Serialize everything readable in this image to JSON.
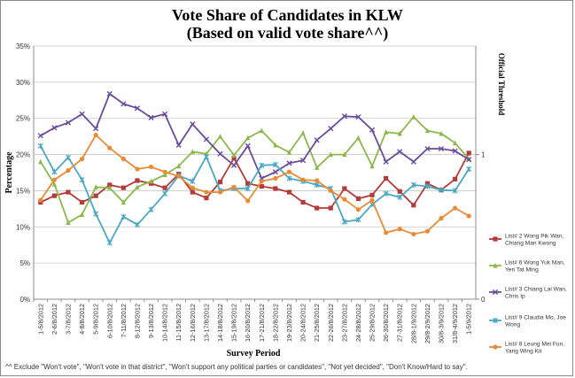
{
  "chart_data": {
    "type": "line",
    "title": "Vote Share of Candidates in KLW",
    "subtitle": "(Based on valid vote share^^)",
    "xlabel": "Survey Period",
    "ylabel": "Percentage",
    "y2label": "Official Threshold",
    "ylim": [
      0,
      35
    ],
    "yticks": [
      "0%",
      "5%",
      "10%",
      "15%",
      "20%",
      "25%",
      "30%",
      "35%"
    ],
    "y2ticks": [
      "0",
      "1"
    ],
    "grid": true,
    "legend_position": "right",
    "categories": [
      "1-5/8/2012",
      "2-6/8/2012",
      "3-7/8/2012",
      "4-8/8/2012",
      "5-9/8/2012",
      "6-10/8/2012",
      "7-11/8/2012",
      "8-12/8/2012",
      "9-13/8/2012",
      "10-14/8/2012",
      "11-15/8/2012",
      "12-16/8/2012",
      "13-17/8/2012",
      "14-18/8/2012",
      "15-19/8/2012",
      "16-20/8/2012",
      "17-21/8/2012",
      "18-22/8/2012",
      "19-23/8/2012",
      "20-24/8/2012",
      "21-25/8/2012",
      "22-26/8/2012",
      "23-27/8/2012",
      "24-28/8/2012",
      "25-29/8/2012",
      "26-30/8/2012",
      "27-31/8/2012",
      "28/8-1/9/2012",
      "29/8-2/9/2012",
      "30/8-3/9/2012",
      "31/8-4/9/2012",
      "1-5/9/2012"
    ],
    "series": [
      {
        "name": "List# 2 Wong Pik Wan, Chiang Man Kwong",
        "color": "#b23c3a",
        "marker": "square",
        "values": [
          13.4,
          14.3,
          14.8,
          13.4,
          14.3,
          15.8,
          15.4,
          16.4,
          16.0,
          15.4,
          17.3,
          14.8,
          14.0,
          16.2,
          19.5,
          16.0,
          15.6,
          15.3,
          14.8,
          13.4,
          12.6,
          12.6,
          15.3,
          13.9,
          14.4,
          16.7,
          14.9,
          13.0,
          16.0,
          15.1,
          16.6,
          20.2
        ]
      },
      {
        "name": "List# 6 Wong Yuk Man, Yen Tat Ming",
        "color": "#8cb84a",
        "marker": "triangle",
        "values": [
          19.0,
          15.9,
          10.6,
          11.7,
          15.5,
          15.4,
          13.4,
          15.5,
          16.3,
          17.2,
          18.4,
          20.4,
          20.1,
          22.5,
          19.9,
          22.3,
          23.3,
          21.3,
          20.3,
          23.0,
          18.2,
          20.0,
          20.0,
          22.3,
          18.4,
          23.1,
          22.9,
          25.2,
          23.3,
          22.9,
          21.6,
          19.4
        ]
      },
      {
        "name": "List# 3 Chiang Lai Wan, Chris Ip",
        "color": "#6a4b9c",
        "marker": "x",
        "values": [
          22.6,
          23.7,
          24.4,
          25.6,
          23.6,
          28.4,
          27.0,
          26.4,
          25.1,
          25.6,
          21.3,
          24.2,
          22.1,
          20.1,
          18.5,
          21.2,
          16.7,
          17.6,
          18.8,
          19.2,
          22.0,
          23.6,
          25.3,
          25.2,
          23.4,
          19.0,
          20.4,
          19.0,
          20.8,
          20.8,
          20.5,
          19.3
        ]
      },
      {
        "name": "List# 9 Claudia Mo, Joe Wong",
        "color": "#4aa8c4",
        "marker": "star",
        "values": [
          21.2,
          17.6,
          19.6,
          16.5,
          11.8,
          7.8,
          11.4,
          10.3,
          12.4,
          14.6,
          17.1,
          16.3,
          19.7,
          15.0,
          15.3,
          15.3,
          18.5,
          18.6,
          16.7,
          16.3,
          15.8,
          15.3,
          10.7,
          11.0,
          13.1,
          14.6,
          14.1,
          15.8,
          15.6,
          15.1,
          15.0,
          18.0
        ]
      },
      {
        "name": "List# 8 Leung Mei Fun, Yang Wing Kit",
        "color": "#e88b35",
        "marker": "circle",
        "values": [
          13.7,
          16.5,
          17.8,
          19.4,
          22.7,
          20.9,
          19.4,
          18.0,
          18.3,
          17.6,
          17.0,
          15.4,
          14.8,
          14.8,
          15.5,
          13.6,
          16.3,
          16.7,
          17.6,
          16.5,
          16.4,
          15.0,
          13.8,
          12.4,
          13.7,
          9.2,
          9.7,
          9.0,
          9.4,
          11.2,
          12.6,
          11.5
        ]
      }
    ],
    "threshold_value": 1
  },
  "footnote": "^^ Exclude \"Won't vote\", \"Won't vote in that district\", \"Won't support any political parties or candidates\", \"Not yet decided\", \"Don't Know/Hard to say\"."
}
